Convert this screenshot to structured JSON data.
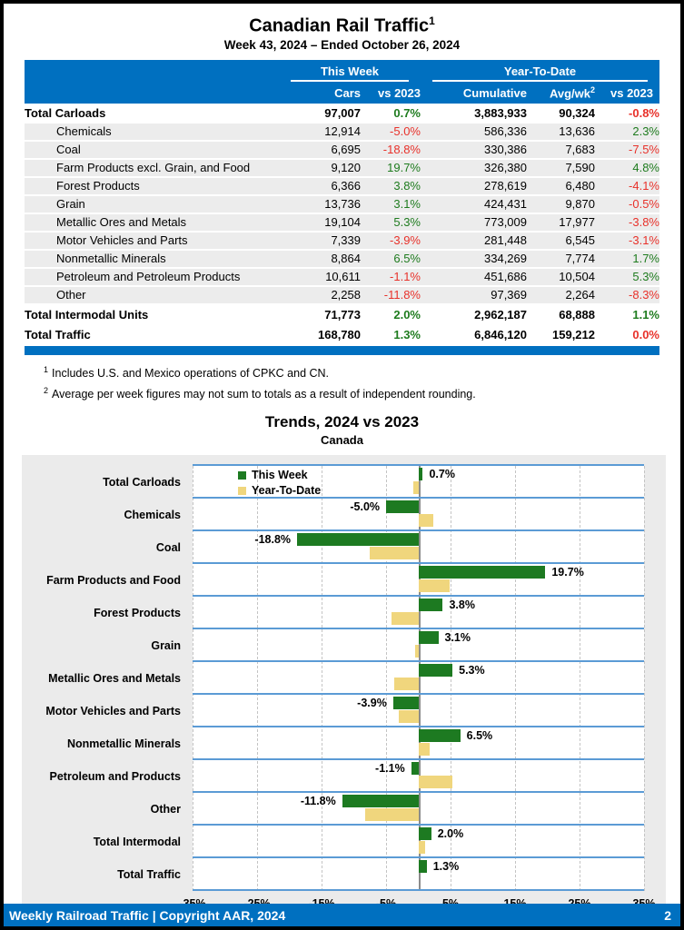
{
  "page": {
    "title": "Canadian Rail Traffic",
    "title_sup": "1",
    "subtitle": "Week 43, 2024 – Ended October 26, 2024",
    "footer_left": "Weekly Railroad Traffic | Copyright AAR, 2024",
    "footer_page": "2"
  },
  "table": {
    "group_headers": [
      {
        "label": "This Week"
      },
      {
        "label": "Year-To-Date"
      }
    ],
    "col_headers": {
      "cars": "Cars",
      "week_vs": "vs 2023",
      "cumulative": "Cumulative",
      "avgwk": "Avg/wk",
      "avgwk_sup": "2",
      "ytd_vs": "vs 2023"
    },
    "rows": [
      {
        "label": "Total Carloads",
        "bold": true,
        "cars": "97,007",
        "wk_pct": "0.7%",
        "wk_dir": "pos",
        "cum": "3,883,933",
        "avg": "90,324",
        "ytd_pct": "-0.8%",
        "ytd_dir": "neg"
      },
      {
        "label": "Chemicals",
        "bold": false,
        "cars": "12,914",
        "wk_pct": "-5.0%",
        "wk_dir": "neg",
        "cum": "586,336",
        "avg": "13,636",
        "ytd_pct": "2.3%",
        "ytd_dir": "pos"
      },
      {
        "label": "Coal",
        "bold": false,
        "cars": "6,695",
        "wk_pct": "-18.8%",
        "wk_dir": "neg",
        "cum": "330,386",
        "avg": "7,683",
        "ytd_pct": "-7.5%",
        "ytd_dir": "neg"
      },
      {
        "label": "Farm Products excl. Grain, and Food",
        "bold": false,
        "cars": "9,120",
        "wk_pct": "19.7%",
        "wk_dir": "pos",
        "cum": "326,380",
        "avg": "7,590",
        "ytd_pct": "4.8%",
        "ytd_dir": "pos"
      },
      {
        "label": "Forest Products",
        "bold": false,
        "cars": "6,366",
        "wk_pct": "3.8%",
        "wk_dir": "pos",
        "cum": "278,619",
        "avg": "6,480",
        "ytd_pct": "-4.1%",
        "ytd_dir": "neg"
      },
      {
        "label": "Grain",
        "bold": false,
        "cars": "13,736",
        "wk_pct": "3.1%",
        "wk_dir": "pos",
        "cum": "424,431",
        "avg": "9,870",
        "ytd_pct": "-0.5%",
        "ytd_dir": "neg"
      },
      {
        "label": "Metallic Ores and Metals",
        "bold": false,
        "cars": "19,104",
        "wk_pct": "5.3%",
        "wk_dir": "pos",
        "cum": "773,009",
        "avg": "17,977",
        "ytd_pct": "-3.8%",
        "ytd_dir": "neg"
      },
      {
        "label": "Motor Vehicles and Parts",
        "bold": false,
        "cars": "7,339",
        "wk_pct": "-3.9%",
        "wk_dir": "neg",
        "cum": "281,448",
        "avg": "6,545",
        "ytd_pct": "-3.1%",
        "ytd_dir": "neg"
      },
      {
        "label": "Nonmetallic Minerals",
        "bold": false,
        "cars": "8,864",
        "wk_pct": "6.5%",
        "wk_dir": "pos",
        "cum": "334,269",
        "avg": "7,774",
        "ytd_pct": "1.7%",
        "ytd_dir": "pos"
      },
      {
        "label": "Petroleum and Petroleum Products",
        "bold": false,
        "cars": "10,611",
        "wk_pct": "-1.1%",
        "wk_dir": "neg",
        "cum": "451,686",
        "avg": "10,504",
        "ytd_pct": "5.3%",
        "ytd_dir": "pos"
      },
      {
        "label": "Other",
        "bold": false,
        "cars": "2,258",
        "wk_pct": "-11.8%",
        "wk_dir": "neg",
        "cum": "97,369",
        "avg": "2,264",
        "ytd_pct": "-8.3%",
        "ytd_dir": "neg"
      },
      {
        "label": "Total Intermodal Units",
        "bold": true,
        "cars": "71,773",
        "wk_pct": "2.0%",
        "wk_dir": "pos",
        "cum": "2,962,187",
        "avg": "68,888",
        "ytd_pct": "1.1%",
        "ytd_dir": "pos"
      },
      {
        "label": "Total Traffic",
        "bold": true,
        "cars": "168,780",
        "wk_pct": "1.3%",
        "wk_dir": "pos",
        "cum": "6,846,120",
        "avg": "159,212",
        "ytd_pct": "0.0%",
        "ytd_dir": "neg"
      }
    ]
  },
  "footnotes": [
    {
      "sup": "1",
      "text": "Includes U.S. and Mexico operations of CPKC and CN."
    },
    {
      "sup": "2",
      "text": "Average per week figures may not sum to totals as a result of independent rounding."
    }
  ],
  "chart_data": {
    "type": "bar",
    "orientation": "horizontal",
    "title": "Trends, 2024 vs 2023",
    "subtitle": "Canada",
    "categories": [
      "Total Carloads",
      "Chemicals",
      "Coal",
      "Farm Products and Food",
      "Forest Products",
      "Grain",
      "Metallic Ores and Metals",
      "Motor Vehicles and Parts",
      "Nonmetallic Minerals",
      "Petroleum and Products",
      "Other",
      "Total Intermodal",
      "Total Traffic"
    ],
    "series": [
      {
        "name": "This Week",
        "color": "#1d7a21",
        "values": [
          0.7,
          -5.0,
          -18.8,
          19.7,
          3.8,
          3.1,
          5.3,
          -3.9,
          6.5,
          -1.1,
          -11.8,
          2.0,
          1.3
        ]
      },
      {
        "name": "Year-To-Date",
        "color": "#f0d67d",
        "values": [
          -0.8,
          2.3,
          -7.5,
          4.8,
          -4.1,
          -0.5,
          -3.8,
          -3.1,
          1.7,
          5.3,
          -8.3,
          1.1,
          0.0
        ]
      }
    ],
    "bar_labels": [
      "0.7%",
      "-5.0%",
      "-18.8%",
      "19.7%",
      "3.8%",
      "3.1%",
      "5.3%",
      "-3.9%",
      "6.5%",
      "-1.1%",
      "-11.8%",
      "2.0%",
      "1.3%"
    ],
    "xlim": [
      -35,
      35
    ],
    "x_ticks": [
      "-35%",
      "-25%",
      "-15%",
      "-5%",
      "5%",
      "15%",
      "25%",
      "35%"
    ],
    "legend_position": "top-left-inside",
    "grid": "vertical-dashed"
  },
  "colors": {
    "header_blue": "#0070C0",
    "separator_blue": "#5B9BD5",
    "panel_gray": "#EBEBEB",
    "row_gray": "#ECECEC",
    "pct_green": "#1e7b1e",
    "pct_red": "#e8312a",
    "bar_green": "#1d7a21",
    "bar_tan": "#f0d67d"
  }
}
